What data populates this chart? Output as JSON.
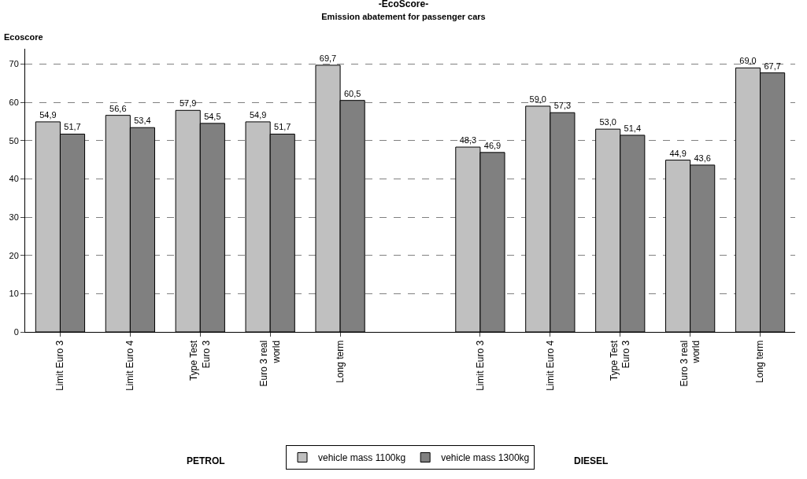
{
  "chart_data": {
    "type": "bar",
    "title": "-EcoScore-",
    "subtitle": "Emission abatement for passenger cars",
    "ylabel": "Ecoscore",
    "categories": [
      "Limit Euro 3",
      "Limit Euro 4",
      "Type Test Euro 3",
      "Euro 3 real world",
      "Long term",
      null,
      "Limit Euro 3",
      "Limit Euro 4",
      "Type Test Euro 3",
      "Euro 3 real world",
      "Long term"
    ],
    "series": [
      {
        "name": "vehicle mass 1100kg",
        "color": "#c0c0c0",
        "values": [
          54.9,
          56.6,
          57.9,
          54.9,
          69.7,
          null,
          48.3,
          59.0,
          53.0,
          44.9,
          69.0
        ],
        "value_labels": [
          "54,9",
          "56,6",
          "57,9",
          "54,9",
          "69,7",
          null,
          "48,3",
          "59,0",
          "53,0",
          "44,9",
          "69,0"
        ]
      },
      {
        "name": "vehicle mass 1300kg",
        "color": "#808080",
        "values": [
          51.7,
          53.4,
          54.5,
          51.7,
          60.5,
          null,
          46.9,
          57.3,
          51.4,
          43.6,
          67.7
        ],
        "value_labels": [
          "51,7",
          "53,4",
          "54,5",
          "51,7",
          "60,5",
          null,
          "46,9",
          "57,3",
          "51,4",
          "43,6",
          "67,7"
        ]
      }
    ],
    "ylim": [
      0,
      74
    ],
    "yticks": [
      0,
      10,
      20,
      30,
      40,
      50,
      60,
      70
    ],
    "grid": "y",
    "legend": "bottom",
    "annotations": [
      "PETROL",
      "DIESEL"
    ]
  }
}
